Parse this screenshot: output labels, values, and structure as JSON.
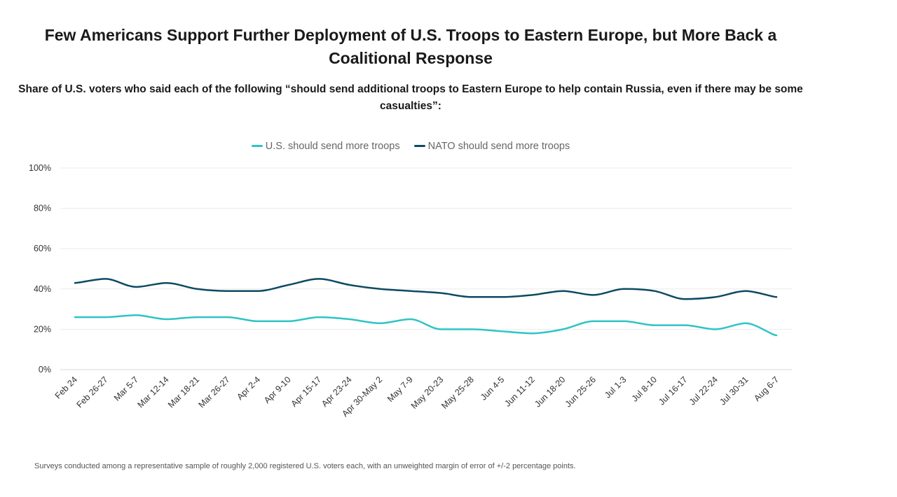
{
  "chart_data": {
    "type": "line",
    "title": "Few Americans Support Further Deployment of U.S. Troops to Eastern Europe, but More Back a Coalitional Response",
    "subtitle": "Share of U.S. voters who said each of the following “should send additional troops to Eastern Europe to help contain Russia, even if there may be some casualties”:",
    "xlabel": "",
    "ylabel": "",
    "legend_position": "top-center",
    "grid": true,
    "ylim": [
      0,
      100
    ],
    "y_ticks": [
      0,
      20,
      40,
      60,
      80,
      100
    ],
    "y_tick_labels": [
      "0%",
      "20%",
      "40%",
      "60%",
      "80%",
      "100%"
    ],
    "categories": [
      "Feb 24",
      "Feb 26-27",
      "Mar 5-7",
      "Mar 12-14",
      "Mar 18-21",
      "Mar 26-27",
      "Apr 2-4",
      "Apr 9-10",
      "Apr 15-17",
      "Apr 23-24",
      "Apr 30-May 2",
      "May 7-9",
      "May 20-23",
      "May 25-28",
      "Jun 4-5",
      "Jun 11-12",
      "Jun 18-20",
      "Jun 25-26",
      "Jul 1-3",
      "Jul 8-10",
      "Jul 16-17",
      "Jul 22-24",
      "Jul 30-31",
      "Aug 6-7"
    ],
    "series": [
      {
        "name": "U.S. should send more troops",
        "color": "#2ec4c6",
        "values": [
          26,
          26,
          27,
          25,
          26,
          26,
          24,
          24,
          26,
          25,
          23,
          25,
          20,
          20,
          19,
          18,
          20,
          24,
          24,
          22,
          22,
          20,
          23,
          17
        ]
      },
      {
        "name": "NATO should send more troops",
        "color": "#0d4a63",
        "values": [
          43,
          45,
          41,
          43,
          40,
          39,
          39,
          42,
          45,
          42,
          40,
          39,
          38,
          36,
          36,
          37,
          39,
          37,
          40,
          39,
          35,
          36,
          39,
          36
        ]
      }
    ]
  },
  "footnote": "Surveys conducted among a representative sample of roughly 2,000 registered U.S. voters each, with an unweighted margin of error of +/-2 percentage points."
}
